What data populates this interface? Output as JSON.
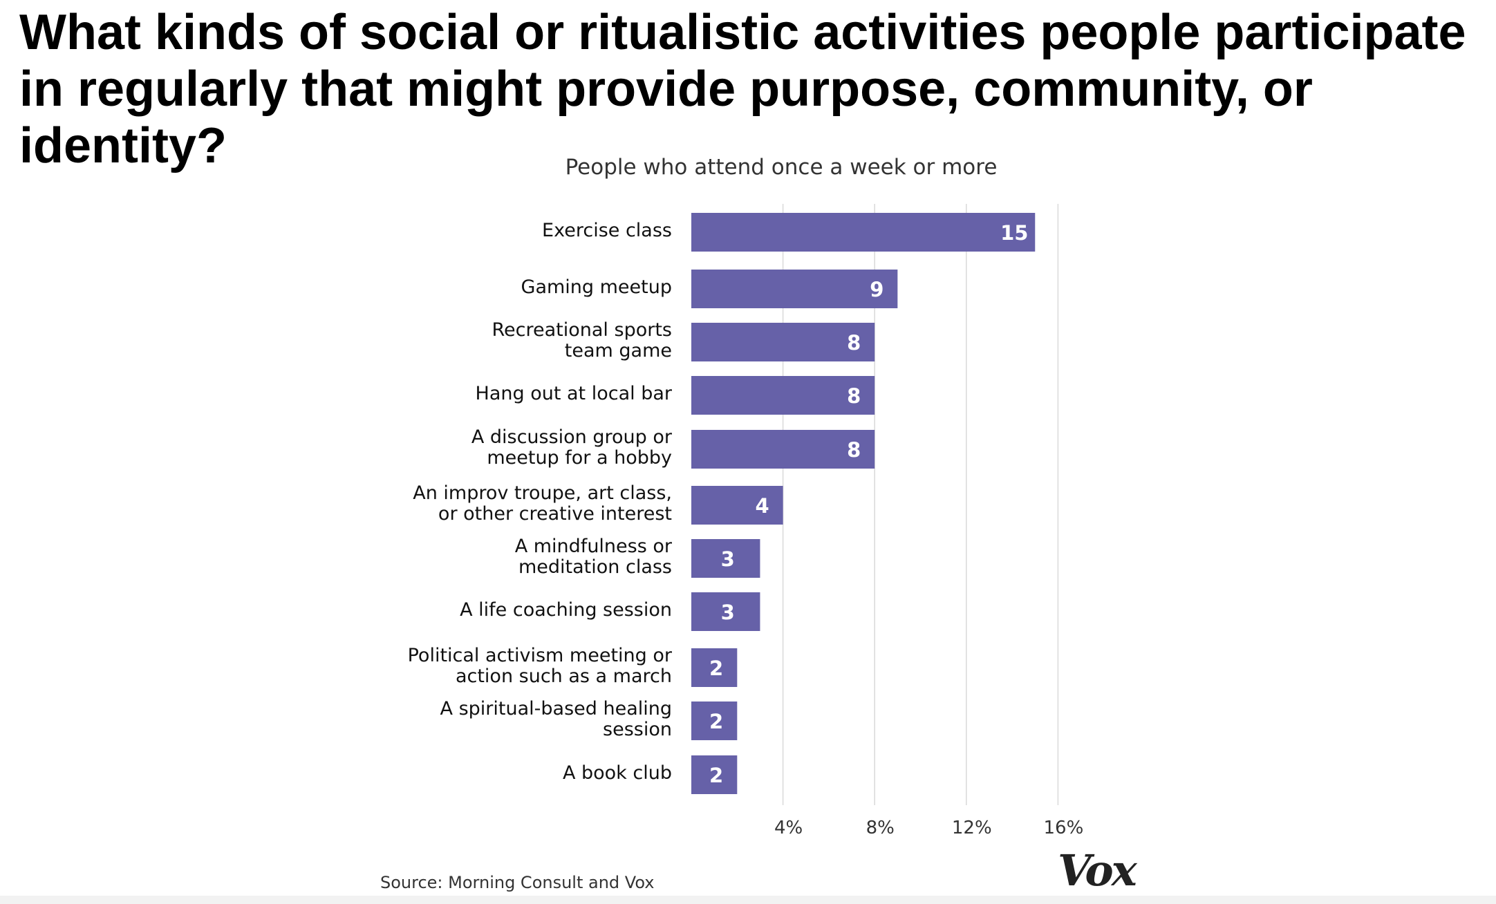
{
  "page": {
    "title": "What kinds of social or ritualistic activities people participate in regularly that might provide purpose, community, or identity?",
    "source": "Source: Morning Consult and Vox",
    "logo": "Vox"
  },
  "chart_data": {
    "type": "bar",
    "orientation": "horizontal",
    "title": "People who attend once a week or more",
    "xlabel": "",
    "ylabel": "",
    "categories": [
      "Exercise class",
      "Gaming meetup",
      "Recreational sports\nteam game",
      "Hang out at local bar",
      "A discussion group or\nmeetup for a hobby",
      "An improv troupe, art class,\nor other creative interest",
      "A mindfulness or\nmeditation class",
      "A life coaching session",
      "Political activism meeting or\naction such as a march",
      "A spiritual-based healing\nsession",
      "A book club"
    ],
    "values": [
      15,
      9,
      8,
      8,
      8,
      4,
      3,
      3,
      2,
      2,
      2
    ],
    "xlim": [
      0,
      16
    ],
    "xticks": [
      4,
      8,
      12,
      16
    ],
    "xtick_labels": [
      "4%",
      "8%",
      "12%",
      "16%"
    ],
    "grid": "vertical",
    "legend": "none",
    "bar_color": "#6661a8",
    "label_color": "#ffffff",
    "grid_color": "#d9d9d9"
  }
}
